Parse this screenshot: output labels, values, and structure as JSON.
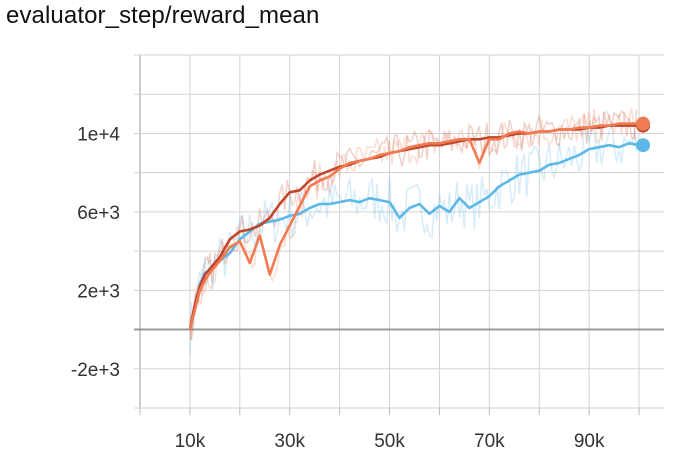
{
  "chart_data": {
    "type": "line",
    "title": "evaluator_step/reward_mean",
    "xlabel": "",
    "ylabel": "",
    "xlim": [
      0,
      105000
    ],
    "ylim": [
      -4000,
      14000
    ],
    "x_ticks": [
      10000,
      30000,
      50000,
      70000,
      90000
    ],
    "x_tick_labels": [
      "10k",
      "30k",
      "50k",
      "70k",
      "90k"
    ],
    "y_ticks": [
      -2000,
      2000,
      6000,
      10000
    ],
    "y_tick_labels": [
      "-2e+3",
      "2e+3",
      "6e+3",
      "1e+4"
    ],
    "grid": true,
    "legend": "none",
    "series": [
      {
        "color": "#5db8e8",
        "x": [
          10000,
          11000,
          12000,
          13000,
          14000,
          16000,
          18000,
          20000,
          22000,
          24000,
          26000,
          28000,
          30000,
          32000,
          34000,
          36000,
          38000,
          40000,
          42000,
          44000,
          46000,
          48000,
          50000,
          52000,
          54000,
          56000,
          58000,
          60000,
          62000,
          64000,
          66000,
          68000,
          70000,
          72000,
          74000,
          76000,
          78000,
          80000,
          82000,
          84000,
          86000,
          88000,
          90000,
          92000,
          94000,
          96000,
          98000,
          100000
        ],
        "y": [
          0,
          1200,
          2300,
          2900,
          3000,
          3500,
          3900,
          4600,
          5000,
          5400,
          5500,
          5600,
          5800,
          5900,
          6200,
          6400,
          6400,
          6500,
          6600,
          6500,
          6700,
          6600,
          6500,
          5700,
          6200,
          6400,
          5900,
          6300,
          6000,
          6700,
          6200,
          6500,
          6800,
          7300,
          7600,
          7900,
          8000,
          8100,
          8400,
          8500,
          8700,
          8900,
          9200,
          9300,
          9400,
          9300,
          9500,
          9400
        ]
      },
      {
        "color": "#c0462c",
        "x": [
          10000,
          11000,
          12000,
          13000,
          14000,
          16000,
          18000,
          20000,
          22000,
          24000,
          26000,
          28000,
          30000,
          32000,
          34000,
          36000,
          38000,
          40000,
          42000,
          44000,
          46000,
          48000,
          50000,
          52000,
          54000,
          56000,
          58000,
          60000,
          62000,
          64000,
          66000,
          68000,
          70000,
          72000,
          74000,
          76000,
          78000,
          80000,
          82000,
          84000,
          86000,
          88000,
          90000,
          92000,
          94000,
          96000,
          98000,
          100000
        ],
        "y": [
          0,
          1300,
          2200,
          2800,
          3100,
          3700,
          4600,
          5000,
          5100,
          5300,
          5700,
          6400,
          7000,
          7100,
          7600,
          7900,
          8100,
          8300,
          8400,
          8600,
          8700,
          8800,
          9000,
          9100,
          9200,
          9300,
          9400,
          9400,
          9500,
          9600,
          9700,
          9700,
          9800,
          9800,
          9900,
          10000,
          10000,
          10100,
          10100,
          10200,
          10200,
          10200,
          10300,
          10300,
          10400,
          10400,
          10400,
          10400
        ]
      },
      {
        "color": "#f07b52",
        "x": [
          10000,
          11000,
          12000,
          13000,
          14000,
          16000,
          18000,
          20000,
          22000,
          24000,
          26000,
          28000,
          30000,
          32000,
          34000,
          36000,
          38000,
          40000,
          42000,
          44000,
          46000,
          48000,
          50000,
          52000,
          54000,
          56000,
          58000,
          60000,
          62000,
          64000,
          66000,
          68000,
          70000,
          72000,
          74000,
          76000,
          78000,
          80000,
          82000,
          84000,
          86000,
          88000,
          90000,
          92000,
          94000,
          96000,
          98000,
          100000
        ],
        "y": [
          0,
          1000,
          2000,
          2500,
          2900,
          3500,
          4200,
          4500,
          3400,
          4800,
          2800,
          4300,
          5300,
          6300,
          7300,
          7600,
          7800,
          8200,
          8500,
          8600,
          8700,
          8900,
          9000,
          9100,
          9300,
          9400,
          9500,
          9500,
          9600,
          9700,
          9700,
          8500,
          9700,
          9700,
          10000,
          10100,
          10000,
          10100,
          10100,
          10200,
          10200,
          10300,
          10300,
          10400,
          10400,
          10500,
          10500,
          10500
        ]
      }
    ]
  }
}
